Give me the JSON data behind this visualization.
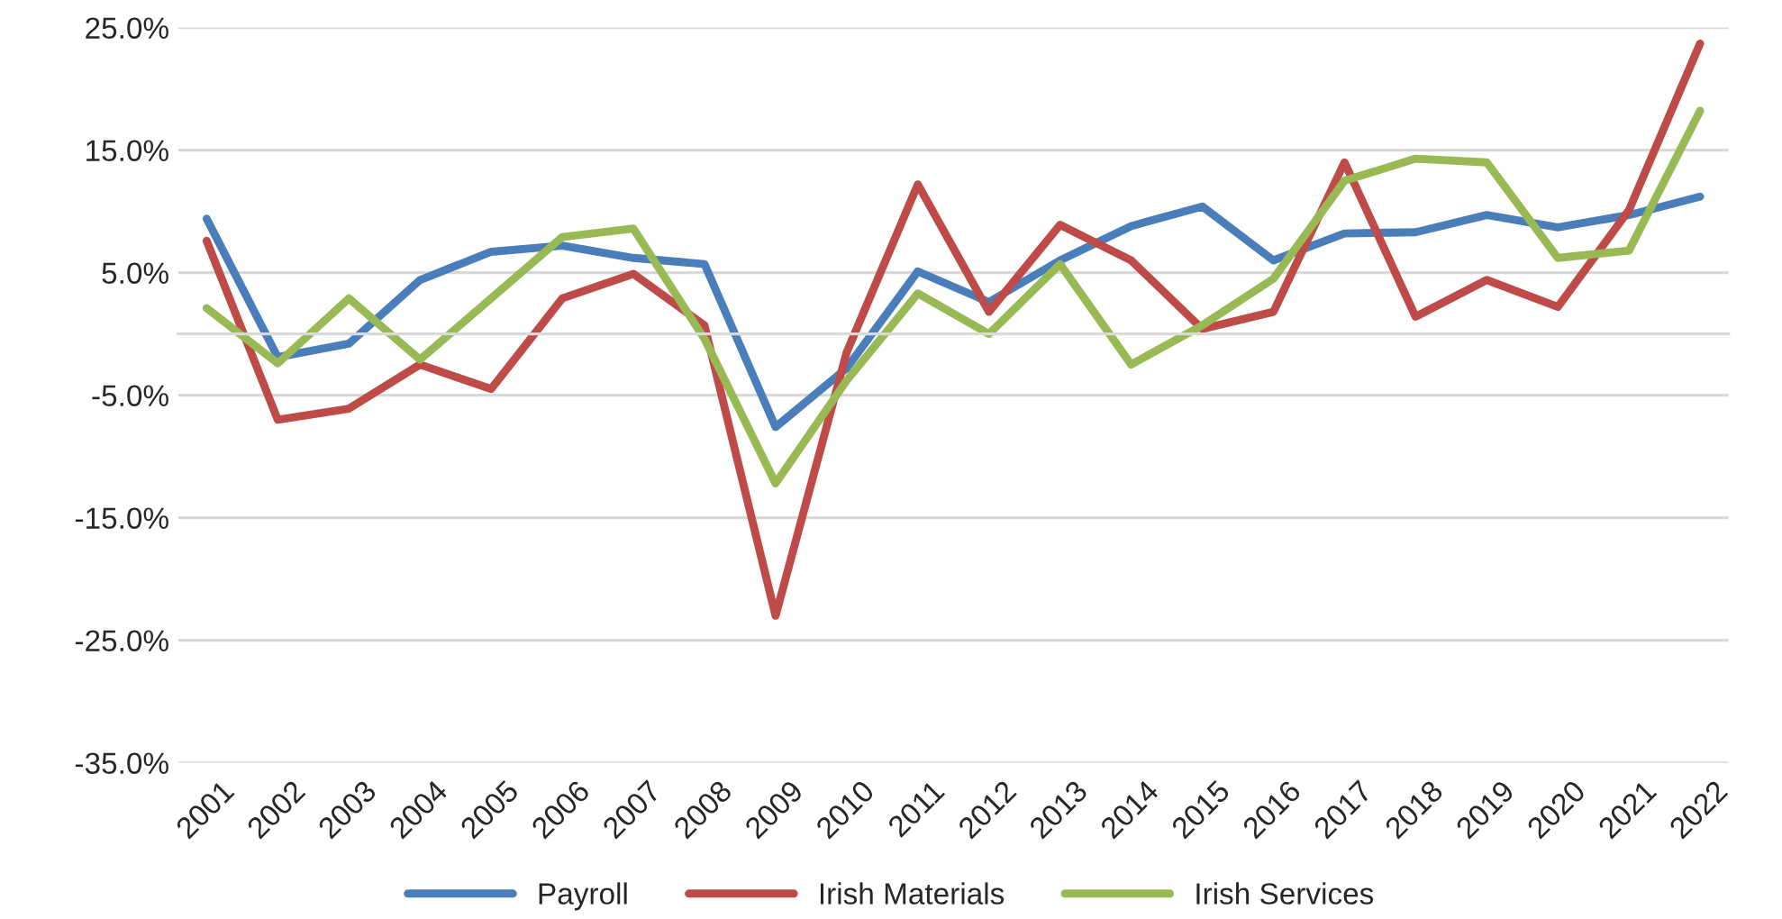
{
  "chart_data": {
    "type": "line",
    "categories": [
      "2001",
      "2002",
      "2003",
      "2004",
      "2005",
      "2006",
      "2007",
      "2008",
      "2009",
      "2010",
      "2011",
      "2012",
      "2013",
      "2014",
      "2015",
      "2016",
      "2017",
      "2018",
      "2019",
      "2020",
      "2021",
      "2022"
    ],
    "series": [
      {
        "name": "Payroll",
        "color": "#4a7ebb",
        "values": [
          9.4,
          -1.9,
          -0.8,
          4.4,
          6.7,
          7.2,
          6.2,
          5.7,
          -7.6,
          -2.8,
          5.1,
          2.6,
          6.0,
          8.8,
          10.4,
          6.0,
          8.2,
          8.3,
          9.7,
          8.7,
          9.7,
          11.2
        ]
      },
      {
        "name": "Irish Materials",
        "color": "#be4b48",
        "values": [
          7.6,
          -7.0,
          -6.1,
          -2.5,
          -4.5,
          2.9,
          4.9,
          0.7,
          -23.0,
          -1.5,
          12.2,
          1.8,
          8.9,
          6.0,
          0.4,
          1.8,
          14.0,
          1.4,
          4.4,
          2.2,
          10.1,
          23.7
        ]
      },
      {
        "name": "Irish Services",
        "color": "#98b954",
        "values": [
          2.1,
          -2.4,
          2.9,
          -2.1,
          2.9,
          7.9,
          8.6,
          -0.4,
          -12.2,
          -3.8,
          3.3,
          0.0,
          5.7,
          -2.5,
          0.7,
          4.5,
          12.5,
          14.3,
          14.0,
          6.2,
          6.8,
          18.2
        ]
      }
    ],
    "ylim": [
      -35,
      25
    ],
    "yticks": [
      {
        "value": -35,
        "label": "-35.0%"
      },
      {
        "value": -25,
        "label": "-25.0%"
      },
      {
        "value": -15,
        "label": "-15.0%"
      },
      {
        "value": -5,
        "label": "-5.0%"
      },
      {
        "value": 5,
        "label": "5.0%"
      },
      {
        "value": 15,
        "label": "15.0%"
      },
      {
        "value": 25,
        "label": "25.0%"
      }
    ],
    "grid": "y",
    "legend": "bottom",
    "marker": "none",
    "line_style": "solid"
  }
}
